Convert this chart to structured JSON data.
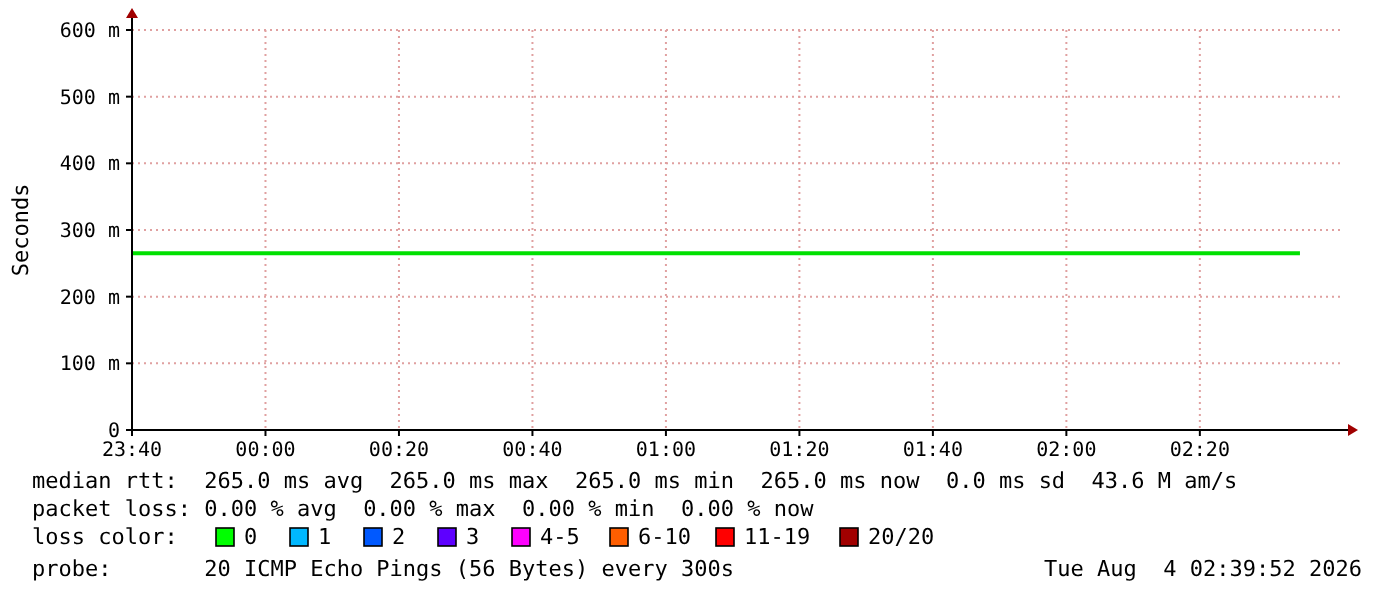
{
  "chart_data": {
    "type": "line",
    "ylabel": "Seconds",
    "xlim": [
      "2026-08-03T23:40",
      "2026-08-04T02:41"
    ],
    "xticks": [
      {
        "value": "2026-08-03T23:40",
        "label": "23:40"
      },
      {
        "value": "2026-08-04T00:00",
        "label": "00:00"
      },
      {
        "value": "2026-08-04T00:20",
        "label": "00:20"
      },
      {
        "value": "2026-08-04T00:40",
        "label": "00:40"
      },
      {
        "value": "2026-08-04T01:00",
        "label": "01:00"
      },
      {
        "value": "2026-08-04T01:20",
        "label": "01:20"
      },
      {
        "value": "2026-08-04T01:40",
        "label": "01:40"
      },
      {
        "value": "2026-08-04T02:00",
        "label": "02:00"
      },
      {
        "value": "2026-08-04T02:20",
        "label": "02:20"
      }
    ],
    "ylim": [
      0,
      600
    ],
    "yticks": [
      0,
      {
        "value": 100,
        "label": "100 m"
      },
      {
        "value": 200,
        "label": "200 m"
      },
      {
        "value": 300,
        "label": "300 m"
      },
      {
        "value": 400,
        "label": "400 m"
      },
      {
        "value": 500,
        "label": "500 m"
      },
      {
        "value": 600,
        "label": "600 m"
      }
    ],
    "grid": true,
    "series": [
      {
        "color": "#00e000",
        "x": [
          "2026-08-03T23:40",
          "2026-08-04T02:35"
        ],
        "values": [
          265,
          265
        ]
      }
    ],
    "annotations": [
      "median rtt:  265.0 ms avg  265.0 ms max  265.0 ms min  265.0 ms now  0.0 ms sd  43.6 M am/s",
      "packet loss: 0.00 % avg  0.00 % max  0.00 % min  0.00 % now",
      "loss color:",
      "0",
      "1",
      "2",
      "3",
      "4-5",
      "6-10",
      "11-19",
      "20/20",
      "probe:       20 ICMP Echo Pings (56 Bytes) every 300s",
      "Tue Aug  4 02:39:52 2026"
    ]
  }
}
